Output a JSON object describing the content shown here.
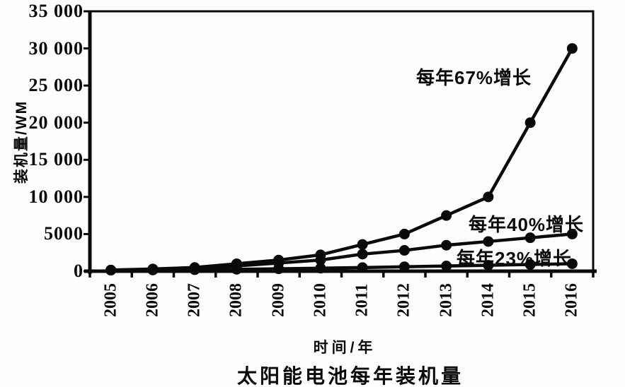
{
  "chart_data": {
    "type": "line",
    "title": "太阳能电池每年装机量",
    "xlabel": "时间/年",
    "ylabel": "装机量/WM",
    "x": [
      2005,
      2006,
      2007,
      2008,
      2009,
      2010,
      2011,
      2012,
      2013,
      2014,
      2015,
      2016
    ],
    "x_tick_labels": [
      "2005",
      "2006",
      "2007",
      "2008",
      "2009",
      "2010",
      "2011",
      "2012",
      "2013",
      "2014",
      "2015",
      "2016"
    ],
    "y_ticks": [
      {
        "value": 0,
        "label": "0"
      },
      {
        "value": 5000,
        "label": "5000"
      },
      {
        "value": 10000,
        "label": "10 000"
      },
      {
        "value": 15000,
        "label": "15 000"
      },
      {
        "value": 20000,
        "label": "20 000"
      },
      {
        "value": 25000,
        "label": "25 000"
      },
      {
        "value": 30000,
        "label": "30 000"
      },
      {
        "value": 35000,
        "label": "35 000"
      }
    ],
    "ylim": [
      0,
      35000
    ],
    "grid": false,
    "legend": "none",
    "marker": "filled-circle",
    "line_color": "#0a0a0a",
    "series": [
      {
        "name": "每年67%增长",
        "values": [
          150,
          300,
          500,
          1000,
          1500,
          2200,
          3600,
          5000,
          7500,
          10000,
          20000,
          30000
        ]
      },
      {
        "name": "每年40%增长",
        "values": [
          140,
          250,
          400,
          700,
          1100,
          1500,
          2300,
          2800,
          3500,
          4000,
          4500,
          5000
        ]
      },
      {
        "name": "每年23%增长",
        "values": [
          130,
          160,
          200,
          250,
          320,
          400,
          490,
          600,
          700,
          800,
          900,
          1000
        ]
      }
    ],
    "annotations": [
      {
        "text": "每年67%增长",
        "x": 588,
        "y": 90
      },
      {
        "text": "每年40%增长",
        "x": 662,
        "y": 298
      },
      {
        "text": "每年23%增长",
        "x": 645,
        "y": 346
      }
    ]
  }
}
